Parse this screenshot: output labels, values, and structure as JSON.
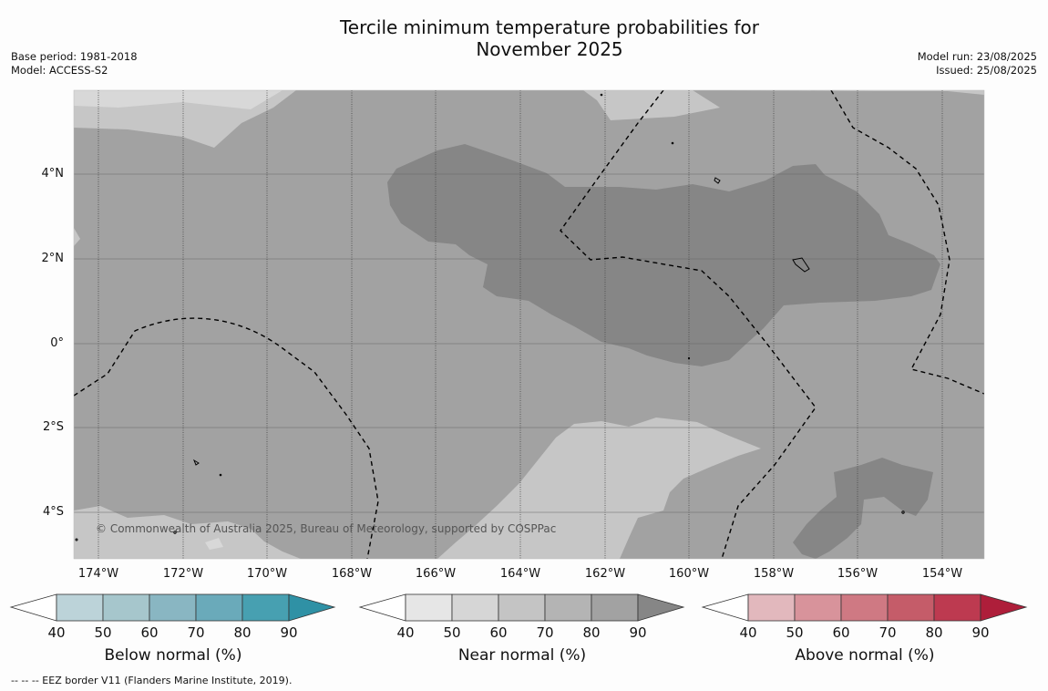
{
  "header": {
    "title_line1": "Tercile minimum temperature probabilities for",
    "title_line2": "November 2025",
    "base_period": "Base period: 1981-2018",
    "model": "Model: ACCESS-S2",
    "model_run": "Model run: 23/08/2025",
    "issued": "Issued: 25/08/2025"
  },
  "map": {
    "lat_labels": [
      "4°N",
      "2°N",
      "0°",
      "2°S",
      "4°S"
    ],
    "lon_labels": [
      "174°W",
      "172°W",
      "170°W",
      "168°W",
      "166°W",
      "164°W",
      "162°W",
      "160°W",
      "158°W",
      "156°W",
      "154°W"
    ],
    "copyright": "© Commonwealth of Australia 2025, Bureau of Meteorology, supported by COSPPac",
    "colors": {
      "near_normal_50_60": "#c6c6c6",
      "near_normal_60_70": "#a2a2a2",
      "near_normal_70_80": "#868686",
      "top_band": "#d8d8d8"
    }
  },
  "colorbars": [
    {
      "title": "Below normal (%)",
      "ticks": [
        "40",
        "50",
        "60",
        "70",
        "80",
        "90"
      ],
      "colors": [
        "#bcd3d9",
        "#a6c6cc",
        "#89b6c2",
        "#6aaaba",
        "#47a0b1",
        "#2f91a5"
      ]
    },
    {
      "title": "Near normal (%)",
      "ticks": [
        "40",
        "50",
        "60",
        "70",
        "80",
        "90"
      ],
      "colors": [
        "#e6e6e6",
        "#d6d6d6",
        "#c4c4c4",
        "#b4b4b4",
        "#a2a2a2",
        "#868686"
      ]
    },
    {
      "title": "Above normal (%)",
      "ticks": [
        "40",
        "50",
        "60",
        "70",
        "80",
        "90"
      ],
      "colors": [
        "#e2b8bd",
        "#d8939b",
        "#cf7983",
        "#c55c69",
        "#bd3a50",
        "#ae1e3a"
      ]
    }
  ],
  "footnote": "--  --  -- EEZ border V11 (Flanders Marine Institute, 2019)."
}
